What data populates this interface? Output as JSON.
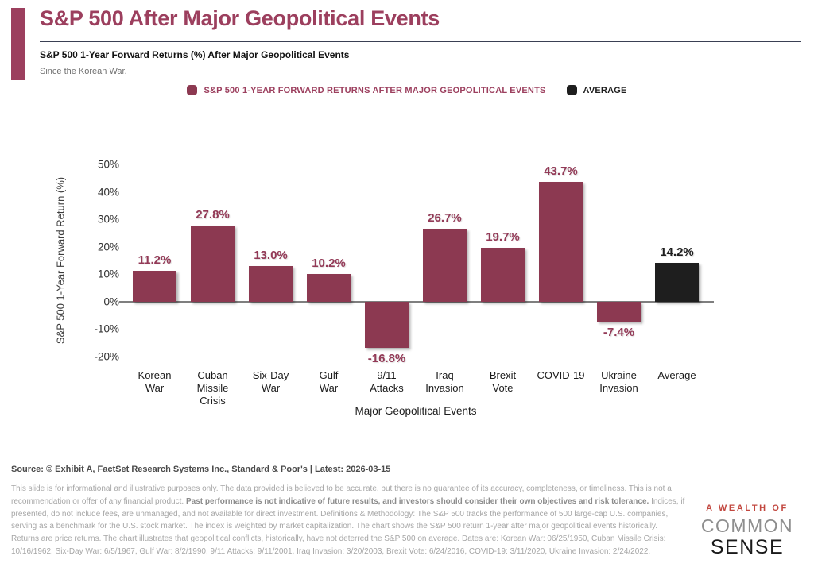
{
  "header": {
    "title": "S&P 500 After Major Geopolitical Events",
    "subtitle": "S&P 500 1-Year Forward Returns (%) After Major Geopolitical Events",
    "tagline": "Since the Korean War."
  },
  "legend": {
    "series_label": "S&P 500 1-YEAR FORWARD RETURNS AFTER MAJOR GEOPOLITICAL EVENTS",
    "average_label": "AVERAGE"
  },
  "chart_data": {
    "type": "bar",
    "title": "S&P 500 1-Year Forward Returns (%) After Major Geopolitical Events",
    "categories": [
      "Korean War",
      "Cuban Missile Crisis",
      "Six-Day War",
      "Gulf War",
      "9/11 Attacks",
      "Iraq Invasion",
      "Brexit Vote",
      "COVID-19",
      "Ukraine Invasion",
      "Average"
    ],
    "category_lines": [
      [
        "Korean",
        "War"
      ],
      [
        "Cuban",
        "Missile",
        "Crisis"
      ],
      [
        "Six-Day",
        "War"
      ],
      [
        "Gulf",
        "War"
      ],
      [
        "9/11",
        "Attacks"
      ],
      [
        "Iraq",
        "Invasion"
      ],
      [
        "Brexit",
        "Vote"
      ],
      [
        "COVID-19"
      ],
      [
        "Ukraine",
        "Invasion"
      ],
      [
        "Average"
      ]
    ],
    "values": [
      11.2,
      27.8,
      13.0,
      10.2,
      -16.8,
      26.7,
      19.7,
      43.7,
      -7.4,
      14.2
    ],
    "labels": [
      "11.2%",
      "27.8%",
      "13.0%",
      "10.2%",
      "-16.8%",
      "26.7%",
      "19.7%",
      "43.7%",
      "-7.4%",
      "14.2%"
    ],
    "highlight_index": 9,
    "xlabel": "Major Geopolitical Events",
    "ylabel": "S&P 500 1-Year Forward Return (%)",
    "ylim": [
      -20,
      50
    ],
    "yticks": [
      50,
      40,
      30,
      20,
      10,
      0,
      -10,
      -20
    ],
    "grid": false,
    "legend_position": "top",
    "series_color": "#8C3951",
    "average_color": "#1E1E1E",
    "value_label_color": "#933A57",
    "axis_line_color": "#7F7F7F"
  },
  "colors": {
    "accent": "#9C3F5E",
    "bar": "#8C3951",
    "average": "#1E1E1E",
    "divider": "#3A4054",
    "logo_red": "#C2473F",
    "logo_gray": "#8E8E8E",
    "logo_black": "#1A1A1A"
  },
  "footer": {
    "source_prefix": "Source: © Exhibit A, FactSet Research Systems Inc., Standard & Poor's | ",
    "source_link": "Latest: 2026-03-15",
    "disclaimer_segments": [
      {
        "bold": false,
        "text": "This slide is for informational and illustrative purposes only. The data provided is believed to be accurate, but there is no guarantee of its accuracy, completeness, or timeliness. This is not a recommendation or offer of any financial product. "
      },
      {
        "bold": true,
        "text": "Past performance is not indicative of future results, and investors should consider their own objectives and risk tolerance."
      },
      {
        "bold": false,
        "text": " Indices, if presented, do not include fees, are unmanaged, and not available for direct investment. Definitions & Methodology: The S&P 500 tracks the performance of 500 large-cap U.S. companies, serving as a benchmark for the U.S. stock market. The index is weighted by market capitalization. The chart shows the S&P 500 return 1-year after major geopolitical events historically. Returns are price returns. The chart illustrates that geopolitical conflicts, historically, have not deterred the S&P 500 on average. Dates are: Korean War: 06/25/1950, Cuban Missile Crisis: 10/16/1962, Six-Day War: 6/5/1967, Gulf War: 8/2/1990, 9/11 Attacks: 9/11/2001, Iraq Invasion: 3/20/2003, Brexit Vote: 6/24/2016, COVID-19: 3/11/2020, Ukraine Invasion: 2/24/2022."
      }
    ]
  },
  "logo": {
    "line1": "A WEALTH OF",
    "line2": "COMMON",
    "line3": "SENSE"
  }
}
